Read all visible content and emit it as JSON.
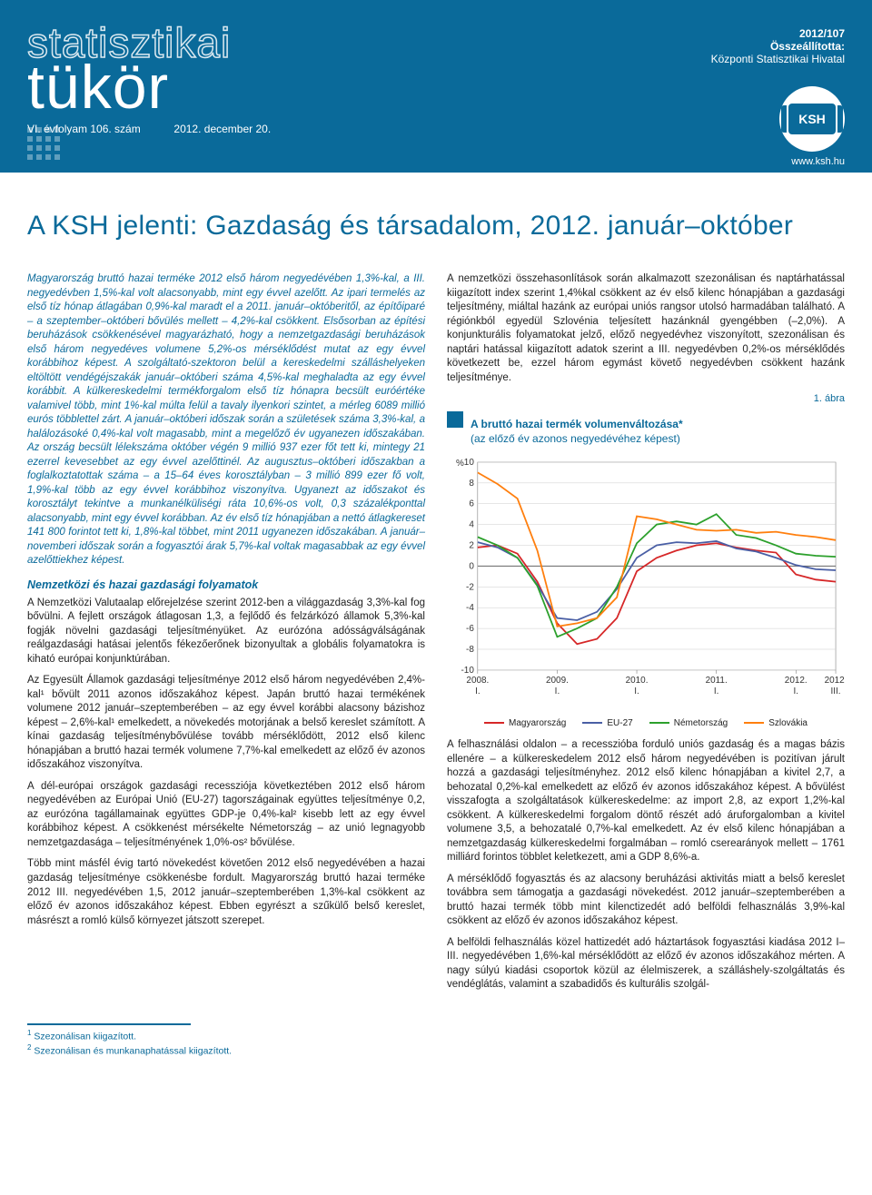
{
  "header": {
    "masthead_top": "statisztikai",
    "masthead_bottom": "tükör",
    "issue_vol": "VI. évfolyam 106. szám",
    "issue_date": "2012. december 20.",
    "code": "2012/107",
    "compiled_label": "Összeállította:",
    "compiled_by": "Központi Statisztikai Hivatal",
    "logo_text": "KSH",
    "url": "www.ksh.hu"
  },
  "title": "A KSH jelenti: Gazdaság és társadalom, 2012. január–október",
  "left_col": {
    "intro": "Magyarország bruttó hazai terméke 2012 első három negyedévében 1,3%-kal, a III. negyedévben 1,5%-kal volt alacsonyabb, mint egy évvel azelőtt. Az ipari termelés az első tíz hónap átlagában 0,9%-kal maradt el a 2011. január–októberitől, az építőiparé – a szeptember–októberi bővülés mellett – 4,2%-kal csökkent. Elsősorban az építési beruházások csökkenésével magyarázható, hogy a nemzetgazdasági beruházások első három negyedéves volumene 5,2%-os mérséklődést mutat az egy évvel korábbihoz képest. A szolgáltató-szektoron belül a kereskedelmi szállás­helyeken eltöltött vendégéjszakák január–októberi száma 4,5%-kal meghaladta az egy évvel korábbit. A külkereskedelmi termékforgalom első tíz hónapra becsült euróértéke valamivel több, mint 1%-kal múlta felül a tavaly ilyenkori szintet, a mérleg 6089 millió eurós többlettel zárt. A január–októberi időszak során a születések száma 3,3%-kal, a halálozásoké 0,4%-kal volt magasabb, mint a megelőző év ugyanezen időszakában. Az ország becsült lélekszáma október végén 9 millió 937 ezer főt tett ki, mintegy 21 ezerrel kevesebbet az egy évvel azelőttinél. Az augusztus–októberi időszakban a foglalkoztatottak száma – a 15–64 éves korosztályban – 3 millió 899 ezer fő volt, 1,9%-kal több az egy évvel korábbihoz viszonyítva. Ugyanezt az időszakot és korosztályt tekintve a munkanélküliségi ráta 10,6%-os volt, 0,3 százalékponttal alacsonyabb, mint egy évvel korábban. Az év első tíz hónapjában a nettó átlagkereset 141 800 forintot tett ki, 1,8%-kal többet, mint 2011 ugyanezen időszakában. A január–novemberi időszak során a fogyasztói árak 5,7%-kal voltak magasabbak az egy évvel azelőttiekhez képest.",
    "section_heading": "Nemzetközi és hazai gazdasági folyamatok",
    "p1": "A Nemzetközi Valutaalap előrejelzése szerint 2012-ben a világgazdaság 3,3%-kal fog bővülni. A fejlett országok átlagosan 1,3, a fejlődő és felzárkózó államok 5,3%-kal fogják növelni gazdasági teljesítményüket. Az eurózóna adósságválságának reálgazdasági hatásai jelentős fékezőerőnek bizonyultak a globális folyamatokra is kiható európai konjunktúrában.",
    "p2": "Az Egyesült Államok gazdasági teljesítménye 2012 első három negyedévében 2,4%-kal¹ bővült 2011 azonos időszakához képest. Japán bruttó hazai termékének volumene 2012 január–szeptemberében – az egy évvel korábbi alacsony bázishoz képest – 2,6%-kal¹ emelkedett, a növekedés motorjának a belső kereslet számított. A kínai gazdaság teljesítménybővülése tovább mérséklődött, 2012 első kilenc hónapjában a bruttó hazai termék volumene 7,7%-kal emelkedett az előző év azonos időszakához viszonyítva.",
    "p3": "A dél-európai országok gazdasági recessziója következtében 2012 első három negyedévében az Európai Unió (EU-27) tagországainak együttes teljesítménye 0,2, az eurózóna tagállamainak együttes GDP-je 0,4%-kal² kisebb lett az egy évvel korábbihoz képest. A csökkenést mérsékelte Németország – az unió legnagyobb nemzetgazdasága – teljesítményének 1,0%-os² bővülése.",
    "p4": "Több mint másfél évig tartó növekedést követően 2012 első negyedévében a hazai gazdaság teljesítménye csökkenésbe fordult. Magyarország bruttó hazai terméke 2012 III. negyedévében 1,5, 2012 január–szeptemberében 1,3%-kal csökkent az előző év azonos időszakához képest. Ebben egyrészt a szűkülő belső kereslet, másrészt a romló külső környezet játszott szerepet."
  },
  "right_col": {
    "p1": "A nemzetközi összehasonlítások során alkalmazott szezonálisan és naptárhatással kiigazított index szerint 1,4%kal csökkent az év első kilenc hónapjában a gazdasági teljesítmény, miáltal hazánk az európai uniós rangsor utolsó harmadában található. A régiónkból egyedül Szlovénia teljesített hazánknál gyengébben (–2,0%). A konjunkturális folyamatokat jelző, előző negyedévhez viszonyított, szezonálisan és naptári hatással kiigazított adatok szerint a III. negyedévben 0,2%-os mérséklődés következett be, ezzel három egymást követő negyedévben csökkent hazánk teljesítménye.",
    "fig_label": "1. ábra",
    "chart_title": "A bruttó hazai termék volumenváltozása*",
    "chart_sub": "(az előző év azonos negyedévéhez képest)",
    "p2": "A felhasználási oldalon – a recesszióba forduló uniós gazdaság és a magas bázis ellenére – a külkereskedelem 2012 első három negyedévében is pozitívan járult hozzá a gazdasági teljesítményhez. 2012 első kilenc hónapjában a kivitel 2,7, a behozatal 0,2%-kal emelkedett az előző év azonos időszakához képest. A bővülést visszafogta a szolgáltatások külkereskedelme: az import 2,8, az export 1,2%-kal csökkent. A külkereskedelmi forgalom döntő részét adó áruforgalomban a kivitel volumene 3,5, a behozatalé 0,7%-kal emelkedett. Az év első kilenc hónapjában a nemzetgazdaság külkereskedelmi forgalmában – romló cserearányok mellett – 1761 milliárd forintos többlet keletkezett, ami a GDP 8,6%-a.",
    "p3": "A mérséklődő fogyasztás és az alacsony beruházási aktivitás miatt a belső kereslet továbbra sem támogatja a gazdasági növekedést. 2012 január–szeptemberében a bruttó hazai termék több mint kilenctizedét adó belföldi felhasználás 3,9%-kal csökkent az előző év azonos időszakához képest.",
    "p4": "A belföldi felhasználás közel hattizedét adó háztartások fogyasztási kiadása 2012 I–III. negyedévében 1,6%-kal mérséklődött az előző év azonos időszakához mérten. A nagy súlyú kiadási csoportok közül az élelmiszerek, a szálláshely-szolgáltatás és vendéglátás, valamint a szabadidős és kulturális szolgál-"
  },
  "chart": {
    "type": "line",
    "y_label": "%",
    "ylim": [
      -10,
      10
    ],
    "yticks": [
      10,
      8,
      6,
      4,
      2,
      0,
      -2,
      -4,
      -6,
      -8,
      -10
    ],
    "xlabels": [
      "2008.\nI.",
      "2009.\nI.",
      "2010.\nI.",
      "2011.\nI.",
      "2012.\nI.",
      "2012.\nIII."
    ],
    "background_color": "#ffffff",
    "grid_color": "#cccccc",
    "axis_color": "#666666",
    "label_fontsize": 10,
    "series": [
      {
        "name": "Magyarország",
        "color": "#d62728",
        "values": [
          1.8,
          2.0,
          1.2,
          -1.5,
          -5.5,
          -7.5,
          -7.0,
          -5.0,
          -0.5,
          0.8,
          1.5,
          2.0,
          2.2,
          1.8,
          1.5,
          1.3,
          -0.8,
          -1.3,
          -1.5
        ]
      },
      {
        "name": "EU-27",
        "color": "#4a5fa5",
        "values": [
          2.3,
          1.8,
          0.8,
          -1.8,
          -5.0,
          -5.2,
          -4.4,
          -2.2,
          0.8,
          2.0,
          2.3,
          2.2,
          2.4,
          1.7,
          1.4,
          0.8,
          0.1,
          -0.3,
          -0.4
        ]
      },
      {
        "name": "Németország",
        "color": "#2ca02c",
        "values": [
          2.8,
          2.0,
          0.8,
          -1.9,
          -6.8,
          -6.0,
          -5.0,
          -2.0,
          2.2,
          4.0,
          4.3,
          4.0,
          5.0,
          3.0,
          2.7,
          2.0,
          1.2,
          1.0,
          0.9
        ]
      },
      {
        "name": "Szlovákia",
        "color": "#ff7f0e",
        "values": [
          9.0,
          7.9,
          6.5,
          1.5,
          -5.8,
          -5.5,
          -5.0,
          -3.0,
          4.8,
          4.5,
          4.0,
          3.5,
          3.4,
          3.5,
          3.2,
          3.3,
          3.0,
          2.8,
          2.5
        ]
      }
    ]
  },
  "footnotes": {
    "fn1": "Szezonálisan kiigazított.",
    "fn2": "Szezonálisan és munkanaphatással kiigazított."
  }
}
